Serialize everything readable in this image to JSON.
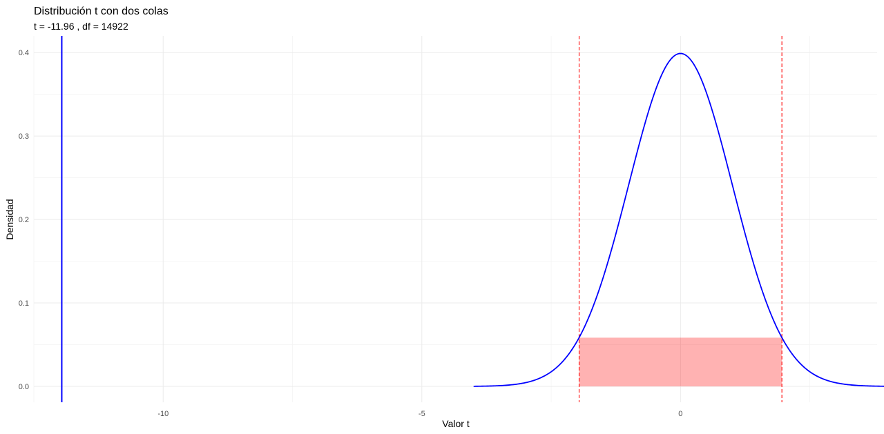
{
  "chart_data": {
    "type": "line",
    "title": "Distribución t con dos colas",
    "subtitle": "t = -11.96 , df = 14922",
    "xlabel": "Valor t",
    "ylabel": "Densidad",
    "xlim": [
      -12.5,
      3.8
    ],
    "ylim": [
      -0.019,
      0.42
    ],
    "x_ticks": [
      -10,
      -5,
      0
    ],
    "x_tick_labels": [
      "-10",
      "-5",
      "0"
    ],
    "y_ticks": [
      0.0,
      0.1,
      0.2,
      0.3,
      0.4
    ],
    "y_tick_labels": [
      "0.0",
      "0.1",
      "0.2",
      "0.3",
      "0.4"
    ],
    "grid": true,
    "density_curve": {
      "distribution": "student-t",
      "df": 14922,
      "x_range": [
        -4,
        4
      ],
      "color": "#0000ff"
    },
    "observed_t": {
      "value": -11.96,
      "color": "#0000ff"
    },
    "critical_values": {
      "values": [
        -1.96,
        1.96
      ],
      "color": "#ff0000",
      "linestyle": "dashed"
    },
    "shaded_region": {
      "x_range": [
        -1.96,
        1.96
      ],
      "y_range": [
        0,
        0.0584
      ],
      "color": "#ff0000",
      "opacity": 0.3
    }
  }
}
